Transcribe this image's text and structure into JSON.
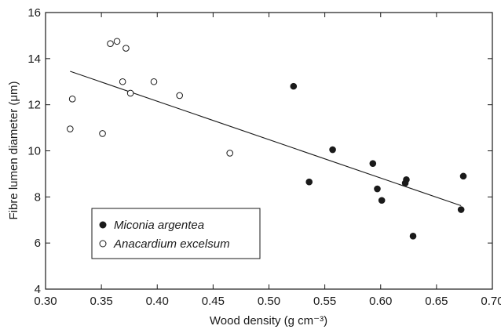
{
  "chart_data": {
    "type": "scatter",
    "xlabel": "Wood density (g cm⁻³)",
    "ylabel": "Fibre lumen diameter (μm)",
    "xlim": [
      0.3,
      0.7
    ],
    "ylim": [
      4,
      16
    ],
    "x_ticks": [
      "0.30",
      "0.35",
      "0.40",
      "0.45",
      "0.50",
      "0.55",
      "0.60",
      "0.65",
      "0.70"
    ],
    "y_ticks": [
      "4",
      "6",
      "8",
      "10",
      "12",
      "14",
      "16"
    ],
    "grid": false,
    "legend_position": "bottom-left",
    "series": [
      {
        "name": "Miconia argentea",
        "marker": "filled-circle",
        "color": "#1a1a1a",
        "points": [
          {
            "x": 0.522,
            "y": 12.8
          },
          {
            "x": 0.536,
            "y": 8.65
          },
          {
            "x": 0.557,
            "y": 10.05
          },
          {
            "x": 0.593,
            "y": 9.45
          },
          {
            "x": 0.597,
            "y": 8.35
          },
          {
            "x": 0.601,
            "y": 7.85
          },
          {
            "x": 0.622,
            "y": 8.6
          },
          {
            "x": 0.623,
            "y": 8.75
          },
          {
            "x": 0.629,
            "y": 6.3
          },
          {
            "x": 0.672,
            "y": 7.45
          },
          {
            "x": 0.674,
            "y": 8.9
          }
        ]
      },
      {
        "name": "Anacardium excelsum",
        "marker": "open-circle",
        "color": "#1a1a1a",
        "points": [
          {
            "x": 0.322,
            "y": 10.95
          },
          {
            "x": 0.324,
            "y": 12.25
          },
          {
            "x": 0.351,
            "y": 10.75
          },
          {
            "x": 0.358,
            "y": 14.65
          },
          {
            "x": 0.364,
            "y": 14.75
          },
          {
            "x": 0.369,
            "y": 13.0
          },
          {
            "x": 0.372,
            "y": 14.45
          },
          {
            "x": 0.376,
            "y": 12.5
          },
          {
            "x": 0.397,
            "y": 13.0
          },
          {
            "x": 0.42,
            "y": 12.4
          },
          {
            "x": 0.465,
            "y": 9.9
          }
        ]
      }
    ],
    "trendline": {
      "x1": 0.322,
      "y1": 13.45,
      "x2": 0.672,
      "y2": 7.62
    }
  }
}
